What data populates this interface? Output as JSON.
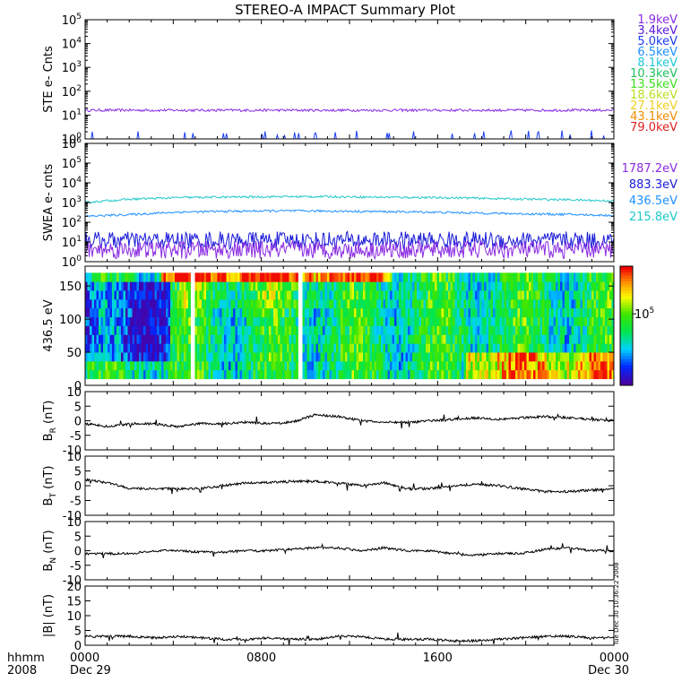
{
  "chart_data": {
    "type": "line",
    "title": "STEREO-A IMPACT Summary Plot",
    "x_axis": {
      "row_label": "hhmm",
      "year_label": "2008",
      "ticks": [
        {
          "time": "0000",
          "date": "Dec 29"
        },
        {
          "time": "0800",
          "date": ""
        },
        {
          "time": "1600",
          "date": ""
        },
        {
          "time": "0000",
          "date": "Dec 30"
        }
      ],
      "range_hours": [
        0,
        24
      ]
    },
    "timestamp": "Tue Dec 30 10:36:22 2008",
    "panels": [
      {
        "ylabel": "STE e- Cnts",
        "scale": "log",
        "ylim_exp": [
          0,
          5
        ],
        "yticks": [
          {
            "base": "10",
            "exp": "0"
          },
          {
            "base": "10",
            "exp": "1"
          },
          {
            "base": "10",
            "exp": "2"
          },
          {
            "base": "10",
            "exp": "3"
          },
          {
            "base": "10",
            "exp": "4"
          },
          {
            "base": "10",
            "exp": "5"
          }
        ],
        "legend": [
          {
            "label": "1.9keV",
            "color": "#8a2be2"
          },
          {
            "label": "3.4keV",
            "color": "#5a1ad8"
          },
          {
            "label": "5.0keV",
            "color": "#1a3cf0"
          },
          {
            "label": "6.5keV",
            "color": "#1e90ff"
          },
          {
            "label": "8.1keV",
            "color": "#20c8d8"
          },
          {
            "label": "10.3keV",
            "color": "#20c060"
          },
          {
            "label": "13.5keV",
            "color": "#40e020"
          },
          {
            "label": "18.6keV",
            "color": "#b8e020"
          },
          {
            "label": "27.1keV",
            "color": "#f0d020"
          },
          {
            "label": "43.1keV",
            "color": "#f08c00"
          },
          {
            "label": "79.0keV",
            "color": "#e02020"
          }
        ],
        "series": [
          {
            "color": "#8a2be2",
            "level": 16,
            "noise": 0.25
          },
          {
            "color": "#1a3cf0",
            "level": 1,
            "noise": "sparse spikes to 2"
          }
        ]
      },
      {
        "ylabel": "SWEA e- cnts",
        "scale": "log",
        "ylim_exp": [
          0,
          6
        ],
        "yticks": [
          {
            "base": "10",
            "exp": "0"
          },
          {
            "base": "10",
            "exp": "1"
          },
          {
            "base": "10",
            "exp": "2"
          },
          {
            "base": "10",
            "exp": "3"
          },
          {
            "base": "10",
            "exp": "4"
          },
          {
            "base": "10",
            "exp": "5"
          },
          {
            "base": "10",
            "exp": "6"
          }
        ],
        "legend": [
          {
            "label": "1787.2eV",
            "color": "#8a2be2"
          },
          {
            "label": "883.3eV",
            "color": "#1a1ad8"
          },
          {
            "label": "436.5eV",
            "color": "#1e90ff"
          },
          {
            "label": "215.8eV",
            "color": "#20c8c8"
          }
        ],
        "series": [
          {
            "color": "#20c8c8",
            "profile": [
              1000,
              1500,
              1800,
              1900,
              2000,
              2000,
              1900,
              1800,
              1700,
              1500,
              1400,
              1200
            ]
          },
          {
            "color": "#1e90ff",
            "profile": [
              200,
              250,
              330,
              360,
              380,
              370,
              350,
              330,
              300,
              270,
              250,
              220
            ]
          },
          {
            "color": "#1a1ad8",
            "level": 12,
            "noise": "strong"
          },
          {
            "color": "#8a2be2",
            "level": 4,
            "noise": "strong"
          }
        ]
      },
      {
        "ylabel": "436.5 eV",
        "scale": "linear",
        "ylim": [
          0,
          180
        ],
        "yticks": [
          "0",
          "50",
          "100",
          "150"
        ],
        "colorbar_label": {
          "base": "10",
          "exp": "5"
        },
        "type": "heatmap"
      },
      {
        "ylabel": {
          "text": "B",
          "sub": "R",
          "unit": " (nT)"
        },
        "ylim": [
          -10,
          10
        ],
        "yticks": [
          "-10",
          "-5",
          "0",
          "5",
          "10"
        ],
        "profile": [
          -1,
          -2,
          -1,
          -1,
          -2,
          -1,
          -1,
          -0.5,
          -1,
          -0.5,
          2,
          1.5,
          0,
          -0.5,
          -0.5,
          0,
          0.5,
          1,
          0.5,
          1,
          1.5,
          1,
          0.5,
          0
        ]
      },
      {
        "ylabel": {
          "text": "B",
          "sub": "T",
          "unit": " (nT)"
        },
        "ylim": [
          -10,
          10
        ],
        "yticks": [
          "-10",
          "-5",
          "0",
          "5",
          "10"
        ],
        "profile": [
          2,
          1,
          -1,
          -1,
          -1,
          -1,
          0,
          1,
          1,
          1.5,
          1.5,
          1,
          0,
          1,
          -1,
          -1,
          0,
          0.5,
          0,
          -1,
          -2,
          -2,
          -1.5,
          -1
        ]
      },
      {
        "ylabel": {
          "text": "B",
          "sub": "N",
          "unit": " (nT)"
        },
        "ylim": [
          -10,
          10
        ],
        "yticks": [
          "-10",
          "-5",
          "0",
          "5",
          "10"
        ],
        "profile": [
          -1,
          -1,
          -1,
          0,
          0,
          -0.5,
          -0.5,
          0,
          0,
          0.5,
          1,
          1,
          0,
          1,
          0,
          0,
          -1,
          -1.5,
          -1,
          -1,
          0.5,
          1,
          0,
          0
        ]
      },
      {
        "ylabel": "|B| (nT)",
        "ylim": [
          0,
          20
        ],
        "yticks": [
          "0",
          "5",
          "10",
          "15",
          "20"
        ],
        "profile": [
          3,
          3,
          3,
          2.5,
          3,
          2.5,
          2,
          2,
          2.5,
          2,
          2,
          3,
          3,
          2,
          2,
          2,
          1.5,
          1.5,
          2,
          2.5,
          3,
          3,
          2.5,
          2.5
        ]
      }
    ]
  }
}
